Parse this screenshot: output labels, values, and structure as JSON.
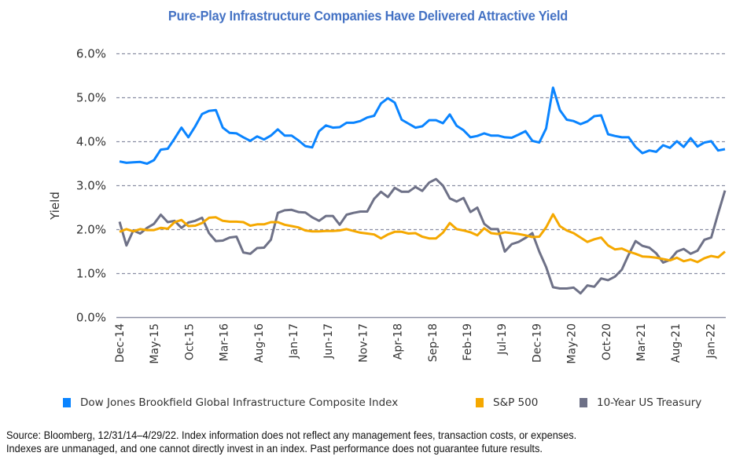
{
  "title": "Pure-Play Infrastructure Companies Have Delivered Attractive Yield",
  "legend": [
    {
      "name": "Dow Jones Brookfield Global Infrastructure Composite Index",
      "color": "#0a84ff"
    },
    {
      "name": "S&P 500",
      "color": "#f5a800"
    },
    {
      "name": "10-Year US Treasury",
      "color": "#6e7187"
    }
  ],
  "source": {
    "line1": "Source: Bloomberg, 12/31/14–4/29/22. Index information does not reflect any management fees, transaction costs, or expenses.",
    "line2": "Indexes are unmanaged, and one cannot directly invest in an index. Past performance does not guarantee future results."
  },
  "chart_data": {
    "type": "line",
    "title": "Pure-Play Infrastructure Companies Have Delivered Attractive Yield",
    "xlabel": "",
    "ylabel": "Yield",
    "ylim": [
      0,
      6
    ],
    "yticks": [
      "0.0%",
      "1.0%",
      "2.0%",
      "3.0%",
      "4.0%",
      "5.0%",
      "6.0%"
    ],
    "x_start": "Dec-14",
    "x_frequency": "monthly",
    "xtick_labels": [
      "Dec-14",
      "May-15",
      "Oct-15",
      "Mar-16",
      "Aug-16",
      "Jan-17",
      "Jun-17",
      "Nov-17",
      "Apr-18",
      "Sep-18",
      "Feb-19",
      "Jul-19",
      "Dec-19",
      "May-20",
      "Oct-20",
      "Mar-21",
      "Aug-21",
      "Jan-22"
    ],
    "xtick_every_months": 5,
    "grid": "horizontal dashed",
    "legend_position": "bottom",
    "series": [
      {
        "name": "Dow Jones Brookfield Global Infrastructure Composite Index",
        "color": "#0a84ff",
        "values": [
          3.55,
          3.52,
          3.53,
          3.54,
          3.5,
          3.58,
          3.82,
          3.84,
          4.07,
          4.32,
          4.1,
          4.35,
          4.63,
          4.7,
          4.72,
          4.32,
          4.2,
          4.19,
          4.1,
          4.02,
          4.12,
          4.05,
          4.14,
          4.28,
          4.14,
          4.14,
          4.03,
          3.9,
          3.87,
          4.24,
          4.37,
          4.32,
          4.33,
          4.43,
          4.43,
          4.47,
          4.55,
          4.59,
          4.87,
          4.99,
          4.89,
          4.5,
          4.41,
          4.32,
          4.35,
          4.49,
          4.49,
          4.42,
          4.62,
          4.36,
          4.26,
          4.1,
          4.13,
          4.19,
          4.14,
          4.14,
          4.1,
          4.09,
          4.16,
          4.24,
          4.02,
          3.98,
          4.3,
          5.23,
          4.72,
          4.5,
          4.47,
          4.4,
          4.46,
          4.58,
          4.6,
          4.17,
          4.13,
          4.1,
          4.1,
          3.88,
          3.74,
          3.8,
          3.77,
          3.92,
          3.86,
          4.01,
          3.88,
          4.08,
          3.89,
          3.98,
          4.01,
          3.8,
          3.83
        ]
      },
      {
        "name": "S&P 500",
        "color": "#f5a800",
        "values": [
          1.95,
          2.01,
          1.96,
          2.01,
          1.99,
          1.99,
          2.04,
          2.02,
          2.17,
          2.22,
          2.08,
          2.09,
          2.15,
          2.27,
          2.28,
          2.2,
          2.18,
          2.18,
          2.17,
          2.09,
          2.12,
          2.12,
          2.17,
          2.17,
          2.11,
          2.08,
          2.05,
          1.98,
          1.96,
          1.96,
          1.97,
          1.97,
          1.98,
          2.01,
          1.97,
          1.93,
          1.91,
          1.89,
          1.8,
          1.89,
          1.95,
          1.95,
          1.91,
          1.92,
          1.84,
          1.8,
          1.8,
          1.93,
          2.15,
          2.01,
          1.98,
          1.94,
          1.87,
          2.03,
          1.92,
          1.9,
          1.94,
          1.92,
          1.9,
          1.87,
          1.83,
          1.84,
          2.05,
          2.35,
          2.08,
          1.98,
          1.92,
          1.82,
          1.72,
          1.78,
          1.82,
          1.64,
          1.55,
          1.57,
          1.5,
          1.45,
          1.39,
          1.38,
          1.36,
          1.33,
          1.3,
          1.36,
          1.28,
          1.32,
          1.26,
          1.35,
          1.4,
          1.37,
          1.5
        ]
      },
      {
        "name": "10-Year US Treasury",
        "color": "#6e7187",
        "values": [
          2.18,
          1.64,
          1.98,
          1.91,
          2.04,
          2.13,
          2.34,
          2.17,
          2.2,
          2.04,
          2.16,
          2.2,
          2.27,
          1.92,
          1.74,
          1.75,
          1.82,
          1.84,
          1.48,
          1.45,
          1.58,
          1.59,
          1.77,
          2.38,
          2.44,
          2.45,
          2.4,
          2.39,
          2.28,
          2.2,
          2.31,
          2.31,
          2.11,
          2.34,
          2.38,
          2.41,
          2.41,
          2.7,
          2.86,
          2.74,
          2.95,
          2.86,
          2.86,
          2.97,
          2.88,
          3.07,
          3.15,
          3.0,
          2.71,
          2.64,
          2.72,
          2.4,
          2.5,
          2.13,
          2.01,
          2.01,
          1.5,
          1.67,
          1.72,
          1.81,
          1.92,
          1.5,
          1.15,
          0.69,
          0.66,
          0.66,
          0.68,
          0.55,
          0.73,
          0.7,
          0.89,
          0.85,
          0.93,
          1.09,
          1.43,
          1.74,
          1.63,
          1.59,
          1.46,
          1.25,
          1.31,
          1.5,
          1.56,
          1.45,
          1.52,
          1.77,
          1.82,
          2.37,
          2.89
        ]
      }
    ]
  }
}
